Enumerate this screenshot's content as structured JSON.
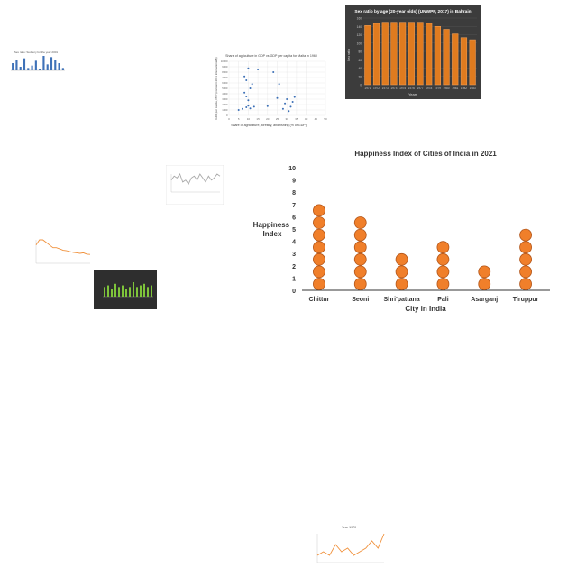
{
  "chart_data": [
    {
      "type": "dot",
      "title": "Happiness Index of Cities of India in 2021",
      "xlabel": "City in India",
      "ylabel": "Happiness Index",
      "categories": [
        "Chittur",
        "Seoni",
        "Shri'pattana",
        "Pali",
        "Asarganj",
        "Tiruppur"
      ],
      "values": [
        7,
        6,
        3,
        4,
        2,
        5
      ],
      "yticks": [
        "0",
        "1",
        "2",
        "3",
        "4",
        "5",
        "6",
        "7",
        "8",
        "9",
        "10"
      ],
      "ylim": [
        0,
        10
      ],
      "grid": false,
      "colors": {
        "dot_fill": "#f07f2a",
        "dot_stroke": "#b3561a"
      }
    },
    {
      "type": "bar",
      "title": "Sex ratio by age (20-year olds) (UNWPP, 2017) in Bahrain",
      "xlabel": "Years",
      "ylabel": "Sex ratio",
      "categories": [
        "1971",
        "1972",
        "1973",
        "1974",
        "1975",
        "1976",
        "1977",
        "1978",
        "1979",
        "1980",
        "1981",
        "1982",
        "1983"
      ],
      "values": [
        142,
        147,
        150,
        150,
        150,
        150,
        150,
        147,
        140,
        133,
        122,
        113,
        108
      ],
      "yticks": [
        "0",
        "20",
        "40",
        "60",
        "80",
        "100",
        "120",
        "140",
        "160"
      ],
      "ylim": [
        0,
        160
      ],
      "colors": {
        "background": "#3c3c3c",
        "bar": "#e07b1f"
      }
    },
    {
      "type": "scatter",
      "title": "Share of agriculture in GDP vs GDP per capita for Malta in 1960",
      "xlabel": "Share of agriculture, forestry, and fishing (% of GDP)",
      "ylabel": "GDP per capita, PPP (constant 2011 international $)",
      "xticks": [
        "0",
        "5",
        "10",
        "15",
        "20",
        "25",
        "30",
        "35",
        "40",
        "45",
        "50"
      ],
      "yticks": [
        "0",
        "1000",
        "2000",
        "3000",
        "4000",
        "5000",
        "6000",
        "7000",
        "8000",
        "9000",
        "10000"
      ],
      "xlim": [
        0,
        50
      ],
      "ylim": [
        0,
        10000
      ],
      "points": [
        [
          5,
          1000
        ],
        [
          7,
          1200
        ],
        [
          9,
          1500
        ],
        [
          10,
          1800
        ],
        [
          11,
          1300
        ],
        [
          8,
          4200
        ],
        [
          9,
          3500
        ],
        [
          10,
          2800
        ],
        [
          8,
          7200
        ],
        [
          9,
          6500
        ],
        [
          12,
          5800
        ],
        [
          11,
          5000
        ],
        [
          10,
          8700
        ],
        [
          13,
          1600
        ],
        [
          15,
          8500
        ],
        [
          20,
          1700
        ],
        [
          23,
          8000
        ],
        [
          25,
          3200
        ],
        [
          26,
          5800
        ],
        [
          28,
          1200
        ],
        [
          29,
          2200
        ],
        [
          30,
          3000
        ],
        [
          32,
          1600
        ],
        [
          33,
          2500
        ],
        [
          34,
          3400
        ],
        [
          31,
          800
        ]
      ],
      "colors": {
        "point": "#3b6fb6"
      }
    },
    {
      "type": "bar",
      "title": "Sex ratio: Sudbury for the year 2001",
      "colors": {
        "bar": "#3f72b8"
      },
      "values": [
        6,
        9,
        3,
        10,
        2,
        4,
        8,
        1,
        12,
        5,
        11,
        9,
        6,
        2
      ]
    },
    {
      "type": "line",
      "colors": {
        "line": "#a9a9a9"
      },
      "values": [
        6,
        8,
        7,
        9,
        5,
        6,
        4,
        7,
        8,
        6,
        9,
        7,
        5,
        8,
        6,
        7,
        9,
        8
      ]
    },
    {
      "type": "line",
      "colors": {
        "line": "#f0913c"
      },
      "values": [
        7,
        9,
        9,
        8,
        7,
        6,
        6,
        5.5,
        5,
        4.8,
        4.5,
        4.2,
        4,
        3.8,
        4,
        3.5,
        3.4
      ]
    },
    {
      "type": "bar",
      "colors": {
        "background": "#2e2e2e",
        "bar": "#7ec43a"
      },
      "values": [
        6,
        7,
        5,
        8,
        6,
        7,
        5,
        6,
        9,
        6,
        7,
        8,
        6,
        7
      ]
    },
    {
      "type": "line",
      "title": "Year 1970",
      "colors": {
        "line": "#f0913c"
      },
      "values": [
        2,
        3,
        2,
        5,
        3,
        4,
        2,
        3,
        4,
        6,
        4,
        8
      ]
    }
  ]
}
